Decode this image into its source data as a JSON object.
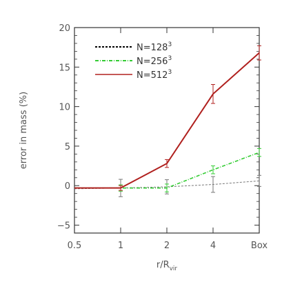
{
  "chart_data": {
    "type": "line",
    "categories": [
      "0.5",
      "1",
      "2",
      "4",
      "Box"
    ],
    "xlabel": "r/R",
    "xlabel_sub": "vir",
    "ylabel": "error in mass (%)",
    "ylim": [
      -6,
      20
    ],
    "yticks": [
      -5,
      0,
      5,
      10,
      15,
      20
    ],
    "grid": false,
    "legend_position": "top-left",
    "series": [
      {
        "name": "N=128",
        "name_sup": "3",
        "color": "#000000",
        "style": "dashed",
        "legend_values": [],
        "values": [
          -0.4,
          -0.3,
          -0.15,
          0.15,
          0.6
        ],
        "errors": [
          null,
          1.1,
          0.9,
          1.0,
          0.7
        ]
      },
      {
        "name": "N=256",
        "name_sup": "3",
        "color": "#33cc33",
        "style": "dashdot",
        "values": [
          -0.3,
          -0.3,
          -0.3,
          2.0,
          4.2
        ],
        "errors": [
          null,
          0.4,
          0.5,
          0.5,
          0.5
        ]
      },
      {
        "name": "N=512",
        "name_sup": "3",
        "color": "#b0201e",
        "style": "solid",
        "values": [
          -0.3,
          -0.3,
          2.8,
          11.6,
          16.8
        ],
        "errors": [
          null,
          0.3,
          0.5,
          1.2,
          0.9
        ]
      }
    ]
  }
}
